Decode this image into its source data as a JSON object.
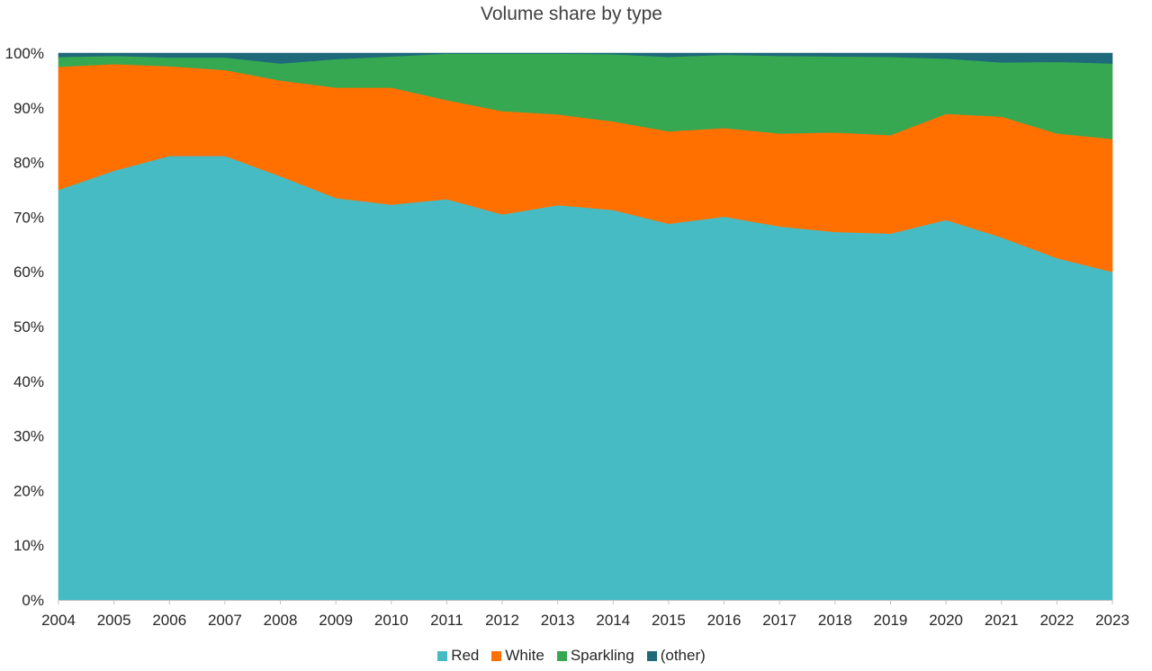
{
  "chart_data": {
    "type": "area",
    "stacked": true,
    "title": "Volume share by type",
    "xlabel": "",
    "ylabel": "",
    "ylim": [
      0,
      100
    ],
    "y_ticks": [
      "0%",
      "10%",
      "20%",
      "30%",
      "40%",
      "50%",
      "60%",
      "70%",
      "80%",
      "90%",
      "100%"
    ],
    "categories": [
      "2004",
      "2005",
      "2006",
      "2007",
      "2008",
      "2009",
      "2010",
      "2011",
      "2012",
      "2013",
      "2014",
      "2015",
      "2016",
      "2017",
      "2018",
      "2019",
      "2020",
      "2021",
      "2022",
      "2023"
    ],
    "series": [
      {
        "name": "Red",
        "color": "#47bbc4",
        "values": [
          75.0,
          78.5,
          81.2,
          81.2,
          77.5,
          73.5,
          72.3,
          73.3,
          70.5,
          72.2,
          71.3,
          68.8,
          70.1,
          68.3,
          67.3,
          67.0,
          69.5,
          66.3,
          62.5,
          60.0
        ]
      },
      {
        "name": "White",
        "color": "#ff7000",
        "values": [
          22.5,
          19.5,
          16.4,
          15.7,
          17.5,
          20.2,
          21.4,
          18.1,
          18.9,
          16.6,
          16.2,
          16.9,
          16.2,
          17.0,
          18.2,
          18.0,
          19.4,
          22.1,
          22.8,
          24.3
        ]
      },
      {
        "name": "Sparkling",
        "color": "#36a852",
        "values": [
          1.8,
          1.5,
          1.6,
          2.3,
          3.1,
          5.2,
          5.7,
          8.5,
          10.5,
          11.1,
          12.3,
          13.6,
          13.4,
          14.2,
          13.9,
          14.3,
          10.1,
          9.9,
          13.1,
          13.8
        ]
      },
      {
        "name": "(other)",
        "color": "#1e6a7a",
        "values": [
          0.7,
          0.5,
          0.8,
          0.8,
          1.9,
          1.1,
          0.6,
          0.1,
          0.1,
          0.1,
          0.2,
          0.7,
          0.3,
          0.5,
          0.6,
          0.7,
          1.0,
          1.7,
          1.6,
          1.9
        ]
      }
    ],
    "legend_position": "bottom-center",
    "grid": false
  }
}
